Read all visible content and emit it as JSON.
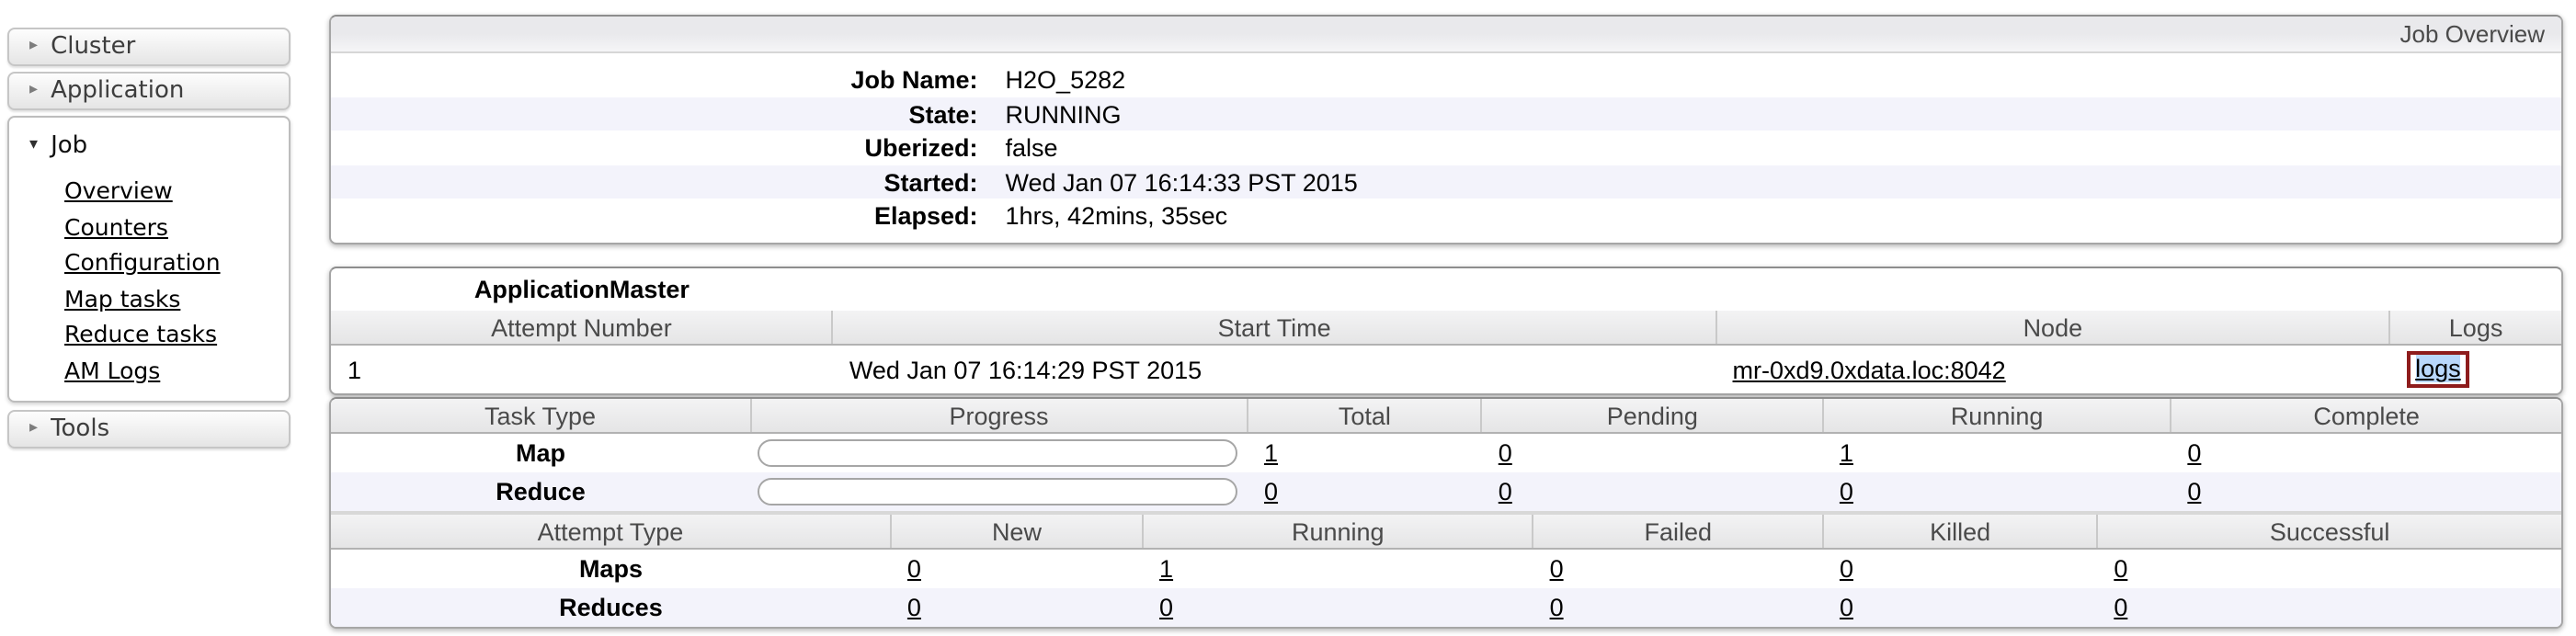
{
  "icons": {
    "collapsed": "▸",
    "expanded": "▾"
  },
  "colors": {
    "row_stripe": "#f3f3fb",
    "selection_highlight": "#b8d7fb",
    "annotation_border": "#8e1c1c"
  },
  "sidebar": {
    "sections": [
      {
        "label": "Cluster",
        "expanded": false
      },
      {
        "label": "Application",
        "expanded": false
      },
      {
        "label": "Job",
        "expanded": true,
        "items": [
          "Overview",
          "Counters",
          "Configuration",
          "Map tasks",
          "Reduce tasks",
          "AM Logs"
        ]
      },
      {
        "label": "Tools",
        "expanded": false
      }
    ]
  },
  "overview": {
    "header": "Job Overview",
    "fields": [
      {
        "label": "Job Name:",
        "value": "H2O_5282"
      },
      {
        "label": "State:",
        "value": "RUNNING"
      },
      {
        "label": "Uberized:",
        "value": "false"
      },
      {
        "label": "Started:",
        "value": "Wed Jan 07 16:14:33 PST 2015"
      },
      {
        "label": "Elapsed:",
        "value": "1hrs, 42mins, 35sec"
      }
    ]
  },
  "application_master": {
    "title": "ApplicationMaster",
    "columns": [
      "Attempt Number",
      "Start Time",
      "Node",
      "Logs"
    ],
    "row": {
      "attempt_number": "1",
      "start_time": "Wed Jan 07 16:14:29 PST 2015",
      "node": "mr-0xd9.0xdata.loc:8042",
      "logs_label": "logs"
    }
  },
  "tasks": {
    "columns": [
      "Task Type",
      "Progress",
      "Total",
      "Pending",
      "Running",
      "Complete"
    ],
    "rows": [
      {
        "type": "Map",
        "progress_percent": 0,
        "total": "1",
        "pending": "0",
        "running": "1",
        "complete": "0"
      },
      {
        "type": "Reduce",
        "progress_percent": 0,
        "total": "0",
        "pending": "0",
        "running": "0",
        "complete": "0"
      }
    ]
  },
  "attempts": {
    "columns": [
      "Attempt Type",
      "New",
      "Running",
      "Failed",
      "Killed",
      "Successful"
    ],
    "rows": [
      {
        "type": "Maps",
        "new": "0",
        "running": "1",
        "failed": "0",
        "killed": "0",
        "successful": "0"
      },
      {
        "type": "Reduces",
        "new": "0",
        "running": "0",
        "failed": "0",
        "killed": "0",
        "successful": "0"
      }
    ]
  }
}
